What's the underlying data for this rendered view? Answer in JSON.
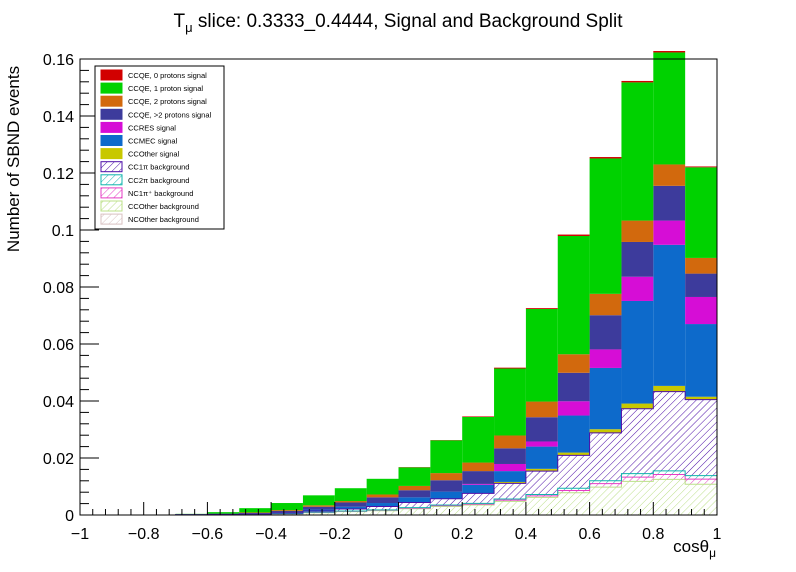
{
  "chart_data": {
    "type": "bar",
    "stacked": true,
    "title": "Tμ slice: 0.3333_0.4444, Signal and Background Split",
    "title_main": "T",
    "title_sub": "μ",
    "title_rest": " slice: 0.3333_0.4444, Signal and Background Split",
    "xlabel_main": "cosθ",
    "xlabel_sub": "μ",
    "ylabel": "Number of SBND events",
    "xlim": [
      -1,
      1
    ],
    "ylim": [
      0,
      0.16
    ],
    "xticks": [
      "−1",
      "−0.8",
      "−0.6",
      "−0.4",
      "−0.2",
      "0",
      "0.2",
      "0.4",
      "0.6",
      "0.8",
      "1"
    ],
    "xtick_values": [
      -1,
      -0.8,
      -0.6,
      -0.4,
      -0.2,
      0,
      0.2,
      0.4,
      0.6,
      0.8,
      1
    ],
    "yticks": [
      "0",
      "0.02",
      "0.04",
      "0.06",
      "0.08",
      "0.1",
      "0.12",
      "0.14",
      "0.16"
    ],
    "ytick_values": [
      0,
      0.02,
      0.04,
      0.06,
      0.08,
      0.1,
      0.12,
      0.14,
      0.16
    ],
    "bin_edges": [
      -1,
      -0.9,
      -0.8,
      -0.7,
      -0.6,
      -0.5,
      -0.4,
      -0.3,
      -0.2,
      -0.1,
      0,
      0.1,
      0.2,
      0.3,
      0.4,
      0.5,
      0.6,
      0.7,
      0.8,
      0.9,
      1
    ],
    "legend_position": "top-left",
    "series": [
      {
        "name": "NCOther background",
        "color": "#d9c2c2",
        "pattern": "hatch",
        "values": [
          0,
          0,
          0,
          0,
          0,
          0,
          0,
          0,
          0,
          0,
          0,
          0,
          0,
          0,
          0,
          0,
          0,
          0,
          0,
          0
        ]
      },
      {
        "name": "CCOther background",
        "color": "#bce08a",
        "pattern": "hatch",
        "values": [
          0,
          0,
          0,
          0.0001,
          0.0002,
          0.0004,
          0.0005,
          0.0008,
          0.0012,
          0.0015,
          0.0022,
          0.003,
          0.0035,
          0.0048,
          0.0062,
          0.0078,
          0.0098,
          0.0118,
          0.0125,
          0.0108
        ]
      },
      {
        "name": "NC1π⁺ background",
        "color": "#e63ec4",
        "pattern": "hatch",
        "values": [
          0,
          0,
          0,
          0,
          0,
          0,
          0,
          0.0001,
          0.0001,
          0.0002,
          0.0002,
          0.0003,
          0.0003,
          0.0004,
          0.0005,
          0.0008,
          0.0012,
          0.0015,
          0.0017,
          0.0018
        ]
      },
      {
        "name": "CC2π background",
        "color": "#10b4ad",
        "pattern": "hatch",
        "values": [
          0,
          0,
          0,
          0,
          0,
          0,
          0,
          0.0001,
          0.0001,
          0.0001,
          0.0002,
          0.0002,
          0.0003,
          0.0004,
          0.0005,
          0.0008,
          0.001,
          0.0012,
          0.0013,
          0.0012
        ]
      },
      {
        "name": "CC1π background",
        "color": "#4d0fa8",
        "pattern": "hatch",
        "values": [
          0,
          0,
          0,
          0,
          0,
          0,
          0.0002,
          0.0004,
          0.0007,
          0.0012,
          0.0018,
          0.0022,
          0.0035,
          0.0055,
          0.0082,
          0.0115,
          0.0168,
          0.0228,
          0.0278,
          0.0267
        ]
      },
      {
        "name": "CCOther signal",
        "color": "#c8c800",
        "pattern": "solid",
        "values": [
          0,
          0,
          0,
          0,
          0,
          0,
          0,
          0,
          0,
          0,
          0,
          0,
          0,
          0.0005,
          0.0008,
          0.001,
          0.0013,
          0.0018,
          0.002,
          0.001
        ]
      },
      {
        "name": "CCMEC signal",
        "color": "#0d6acb",
        "pattern": "solid",
        "values": [
          0,
          0,
          0,
          0,
          0,
          0.0001,
          0.0002,
          0.0005,
          0.0008,
          0.0012,
          0.0018,
          0.0025,
          0.003,
          0.0038,
          0.0078,
          0.013,
          0.0215,
          0.036,
          0.0495,
          0.0255
        ]
      },
      {
        "name": "CCRES signal",
        "color": "#d60dd6",
        "pattern": "solid",
        "values": [
          0,
          0,
          0,
          0,
          0,
          0,
          0,
          0,
          0,
          0,
          0,
          0,
          0.0003,
          0.0025,
          0.0018,
          0.005,
          0.0065,
          0.0085,
          0.0085,
          0.0095
        ]
      },
      {
        "name": "CCQE, >2 protons signal",
        "color": "#3d3b9c",
        "pattern": "solid",
        "values": [
          0,
          0,
          0,
          0,
          0,
          0.0002,
          0.0005,
          0.001,
          0.0015,
          0.002,
          0.0025,
          0.004,
          0.0045,
          0.0055,
          0.0085,
          0.01,
          0.012,
          0.0122,
          0.0122,
          0.0082
        ]
      },
      {
        "name": "CCQE, 2 protons signal",
        "color": "#d2690d",
        "pattern": "solid",
        "values": [
          0,
          0,
          0,
          0,
          0,
          0.0002,
          0.0003,
          0.0005,
          0.0005,
          0.001,
          0.0015,
          0.0025,
          0.003,
          0.0045,
          0.0055,
          0.0065,
          0.0075,
          0.0075,
          0.0075,
          0.0055
        ]
      },
      {
        "name": "CCQE, 1 proton signal",
        "color": "#00d200",
        "pattern": "solid",
        "values": [
          0,
          0,
          0.0001,
          0.0003,
          0.0008,
          0.0015,
          0.0025,
          0.0035,
          0.0045,
          0.0055,
          0.0065,
          0.0115,
          0.016,
          0.0235,
          0.0325,
          0.0415,
          0.0475,
          0.0485,
          0.0393,
          0.0318
        ]
      },
      {
        "name": "CCQE, 0 protons signal",
        "color": "#d20000",
        "pattern": "solid",
        "values": [
          0,
          0,
          0,
          0,
          0,
          0,
          0,
          0,
          0,
          0,
          0.0001,
          0.0001,
          0.0002,
          0.0003,
          0.0003,
          0.0005,
          0.0005,
          0.0005,
          0.0005,
          0.0003
        ]
      }
    ],
    "legend_entries": [
      {
        "label": "CCQE, 0 protons signal",
        "color": "#d20000",
        "pattern": "solid"
      },
      {
        "label": "CCQE, 1 proton signal",
        "color": "#00d200",
        "pattern": "solid"
      },
      {
        "label": "CCQE, 2 protons signal",
        "color": "#d2690d",
        "pattern": "solid"
      },
      {
        "label": "CCQE, >2 protons signal",
        "color": "#3d3b9c",
        "pattern": "solid"
      },
      {
        "label": "CCRES signal",
        "color": "#d60dd6",
        "pattern": "solid"
      },
      {
        "label": "CCMEC signal",
        "color": "#0d6acb",
        "pattern": "solid"
      },
      {
        "label": "CCOther signal",
        "color": "#c8c800",
        "pattern": "solid"
      },
      {
        "label": "CC1π background",
        "color": "#4d0fa8",
        "pattern": "hatch"
      },
      {
        "label": "CC2π background",
        "color": "#10b4ad",
        "pattern": "hatch"
      },
      {
        "label": "NC1π⁺ background",
        "color": "#e63ec4",
        "pattern": "hatch"
      },
      {
        "label": "CCOther background",
        "color": "#bce08a",
        "pattern": "hatch"
      },
      {
        "label": "NCOther background",
        "color": "#d9c2c2",
        "pattern": "hatch"
      }
    ]
  }
}
